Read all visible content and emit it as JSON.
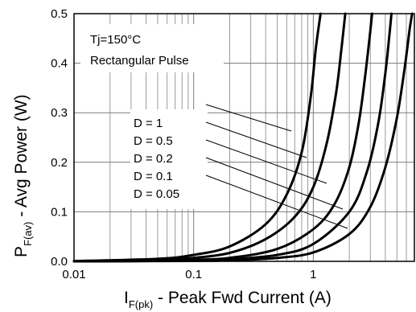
{
  "chart_data": {
    "type": "line",
    "title": "",
    "xlabel": {
      "main": "I",
      "sub": "F(pk)",
      "rest": " - Peak Fwd Current (A)"
    },
    "ylabel": {
      "main": "P",
      "sub": "F(av)",
      "rest": " - Avg Power (W)"
    },
    "x_scale": "log",
    "xlim": [
      0.01,
      7
    ],
    "ylim": [
      0,
      0.5
    ],
    "x_ticks": [
      {
        "value": 0.01,
        "label": "0.01"
      },
      {
        "value": 0.1,
        "label": "0.1"
      },
      {
        "value": 1,
        "label": "1"
      }
    ],
    "y_ticks": [
      {
        "value": 0.0,
        "label": "0.0"
      },
      {
        "value": 0.1,
        "label": "0.1"
      },
      {
        "value": 0.2,
        "label": "0.2"
      },
      {
        "value": 0.3,
        "label": "0.3"
      },
      {
        "value": 0.4,
        "label": "0.4"
      },
      {
        "value": 0.5,
        "label": "0.5"
      }
    ],
    "grid": true,
    "annotations": {
      "condition": "Tj=150°C",
      "waveform": "Rectangular Pulse"
    },
    "series": [
      {
        "name": "D = 1",
        "points": [
          [
            0.01,
            0.0006
          ],
          [
            0.05,
            0.005
          ],
          [
            0.1,
            0.013
          ],
          [
            0.2,
            0.03
          ],
          [
            0.4,
            0.075
          ],
          [
            0.6,
            0.135
          ],
          [
            0.8,
            0.22
          ],
          [
            0.95,
            0.33
          ],
          [
            1.05,
            0.43
          ],
          [
            1.15,
            0.5
          ]
        ]
      },
      {
        "name": "D = 0.5",
        "points": [
          [
            0.01,
            0.0003
          ],
          [
            0.05,
            0.0025
          ],
          [
            0.1,
            0.007
          ],
          [
            0.2,
            0.017
          ],
          [
            0.4,
            0.045
          ],
          [
            0.7,
            0.09
          ],
          [
            1.0,
            0.15
          ],
          [
            1.3,
            0.24
          ],
          [
            1.55,
            0.34
          ],
          [
            1.72,
            0.43
          ],
          [
            1.85,
            0.5
          ]
        ]
      },
      {
        "name": "D = 0.2",
        "points": [
          [
            0.01,
            0.0001
          ],
          [
            0.05,
            0.001
          ],
          [
            0.1,
            0.003
          ],
          [
            0.2,
            0.007
          ],
          [
            0.5,
            0.025
          ],
          [
            1.0,
            0.065
          ],
          [
            1.5,
            0.115
          ],
          [
            2.0,
            0.19
          ],
          [
            2.4,
            0.28
          ],
          [
            2.7,
            0.37
          ],
          [
            2.95,
            0.45
          ],
          [
            3.1,
            0.5
          ]
        ]
      },
      {
        "name": "D = 0.1",
        "points": [
          [
            0.01,
            5e-05
          ],
          [
            0.1,
            0.0015
          ],
          [
            0.2,
            0.004
          ],
          [
            0.5,
            0.013
          ],
          [
            1.0,
            0.035
          ],
          [
            2.0,
            0.1
          ],
          [
            2.8,
            0.18
          ],
          [
            3.5,
            0.28
          ],
          [
            4.0,
            0.38
          ],
          [
            4.3,
            0.45
          ],
          [
            4.5,
            0.5
          ]
        ]
      },
      {
        "name": "D = 0.05",
        "points": [
          [
            0.01,
            3e-05
          ],
          [
            0.1,
            0.0008
          ],
          [
            0.2,
            0.002
          ],
          [
            0.5,
            0.007
          ],
          [
            1.0,
            0.018
          ],
          [
            2.0,
            0.055
          ],
          [
            3.0,
            0.11
          ],
          [
            4.0,
            0.19
          ],
          [
            5.0,
            0.29
          ],
          [
            5.8,
            0.39
          ],
          [
            6.4,
            0.47
          ],
          [
            6.7,
            0.5
          ]
        ]
      }
    ],
    "legend_labels": [
      "D = 1",
      "D = 0.5",
      "D = 0.2",
      "D = 0.1",
      "D = 0.05"
    ]
  }
}
